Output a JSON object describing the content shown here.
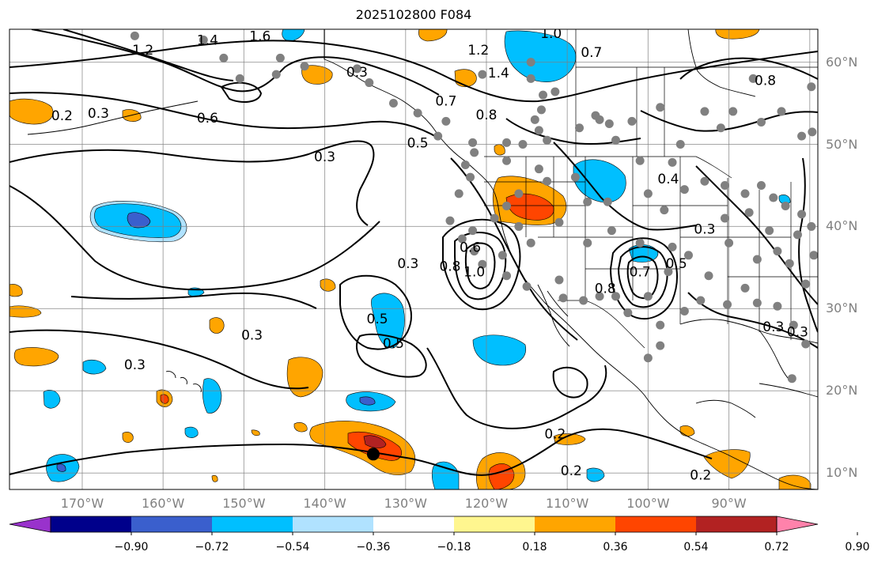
{
  "title": "2025102800 F084",
  "lat_labels": [
    {
      "value": 60,
      "text": "60°N"
    },
    {
      "value": 50,
      "text": "50°N"
    },
    {
      "value": 40,
      "text": "40°N"
    },
    {
      "value": 30,
      "text": "30°N"
    },
    {
      "value": 20,
      "text": "20°N"
    },
    {
      "value": 10,
      "text": "10°N"
    }
  ],
  "lon_labels": [
    {
      "value": -170,
      "text": "170°W"
    },
    {
      "value": -160,
      "text": "160°W"
    },
    {
      "value": -150,
      "text": "150°W"
    },
    {
      "value": -140,
      "text": "140°W"
    },
    {
      "value": -130,
      "text": "130°W"
    },
    {
      "value": -120,
      "text": "120°W"
    },
    {
      "value": -110,
      "text": "110°W"
    },
    {
      "value": -100,
      "text": "100°W"
    },
    {
      "value": -90,
      "text": "90°W"
    }
  ],
  "extent": {
    "lon_min": -179,
    "lon_max": -79,
    "lat_min": 8,
    "lat_max": 64
  },
  "colorbar": {
    "colors": [
      "#9932cc",
      "#00008b",
      "#3a5fcd",
      "#00bfff",
      "#b0e2ff",
      "#ffffff",
      "#fff68f",
      "#ffa500",
      "#ff4500",
      "#b22222",
      "#ff82ab"
    ],
    "tick_labels": [
      "−0.90",
      "−0.72",
      "−0.54",
      "−0.36",
      "−0.18",
      "0.18",
      "0.36",
      "0.54",
      "0.72",
      "0.90"
    ]
  },
  "contour_labels": [
    {
      "text": "1.2",
      "lon": -162.5,
      "lat": 61.5
    },
    {
      "text": "1.4",
      "lon": -154.5,
      "lat": 62.7
    },
    {
      "text": "1.6",
      "lon": -148,
      "lat": 63.2
    },
    {
      "text": "0.2",
      "lon": -172.5,
      "lat": 53.5
    },
    {
      "text": "0.3",
      "lon": -168,
      "lat": 53.8
    },
    {
      "text": "0.6",
      "lon": -154.5,
      "lat": 53.2
    },
    {
      "text": "0.3",
      "lon": -136,
      "lat": 58.8
    },
    {
      "text": "0.5",
      "lon": -128.5,
      "lat": 50.2
    },
    {
      "text": "0.3",
      "lon": -140,
      "lat": 48.5
    },
    {
      "text": "0.7",
      "lon": -125,
      "lat": 55.3
    },
    {
      "text": "0.8",
      "lon": -120,
      "lat": 53.6
    },
    {
      "text": "1.2",
      "lon": -121,
      "lat": 61.5
    },
    {
      "text": "1.4",
      "lon": -118.5,
      "lat": 58.7
    },
    {
      "text": "1.0",
      "lon": -112,
      "lat": 63.5
    },
    {
      "text": "0.7",
      "lon": -107,
      "lat": 61.2
    },
    {
      "text": "0.8",
      "lon": -85.5,
      "lat": 57.8
    },
    {
      "text": "0.4",
      "lon": -97.5,
      "lat": 45.8
    },
    {
      "text": "0.3",
      "lon": -93,
      "lat": 39.7
    },
    {
      "text": "0.5",
      "lon": -96.5,
      "lat": 35.5
    },
    {
      "text": "0.3",
      "lon": -129.7,
      "lat": 35.5
    },
    {
      "text": "0.6",
      "lon": -122,
      "lat": 37.5
    },
    {
      "text": "0.8",
      "lon": -124.5,
      "lat": 35.2
    },
    {
      "text": "1.0",
      "lon": -121.5,
      "lat": 34.5
    },
    {
      "text": "0.5",
      "lon": -133.5,
      "lat": 28.8
    },
    {
      "text": "0.5",
      "lon": -131.5,
      "lat": 25.8
    },
    {
      "text": "0.3",
      "lon": -149,
      "lat": 26.8
    },
    {
      "text": "0.3",
      "lon": -163.5,
      "lat": 23.2
    },
    {
      "text": "0.2",
      "lon": -111.5,
      "lat": 14.8
    },
    {
      "text": "0.2",
      "lon": -109.5,
      "lat": 10.3
    },
    {
      "text": "0.2",
      "lon": -93.5,
      "lat": 9.8
    },
    {
      "text": "0.8",
      "lon": -105.3,
      "lat": 32.5
    },
    {
      "text": "0.7",
      "lon": -101,
      "lat": 34.5
    },
    {
      "text": "0.3",
      "lon": -84.5,
      "lat": 27.8
    },
    {
      "text": "0.3",
      "lon": -81.5,
      "lat": 27.2
    }
  ],
  "station_markers": [
    [
      -163.5,
      63.2
    ],
    [
      -155,
      62.7
    ],
    [
      -152.5,
      60.5
    ],
    [
      -150.5,
      58
    ],
    [
      -146,
      58.5
    ],
    [
      -145.5,
      60.5
    ],
    [
      -142.5,
      59.5
    ],
    [
      -136,
      59.2
    ],
    [
      -134.5,
      57.5
    ],
    [
      -131.5,
      55
    ],
    [
      -128.5,
      53.8
    ],
    [
      -125,
      52.8
    ],
    [
      -126,
      51
    ],
    [
      -121.7,
      50.2
    ],
    [
      -121.5,
      49
    ],
    [
      -117.5,
      50.2
    ],
    [
      -114,
      53
    ],
    [
      -113.2,
      54.2
    ],
    [
      -113.5,
      51.7
    ],
    [
      -112.5,
      50.5
    ],
    [
      -108.5,
      52
    ],
    [
      -106.5,
      53.5
    ],
    [
      -104.8,
      52.5
    ],
    [
      -104,
      50.5
    ],
    [
      -102,
      52.8
    ],
    [
      -98.5,
      54.5
    ],
    [
      -96,
      50
    ],
    [
      -93,
      54
    ],
    [
      -91,
      52
    ],
    [
      -89.5,
      54
    ],
    [
      -87,
      58
    ],
    [
      -86,
      52.7
    ],
    [
      -83.5,
      54
    ],
    [
      -81,
      51
    ],
    [
      -79.8,
      57
    ],
    [
      -79.7,
      51.5
    ],
    [
      -120.5,
      58.5
    ],
    [
      -114.5,
      60
    ],
    [
      -113,
      56
    ],
    [
      -111.5,
      56.4
    ],
    [
      -114.5,
      58
    ],
    [
      -106,
      53
    ],
    [
      -115.5,
      50
    ],
    [
      -117.5,
      48
    ],
    [
      -122.6,
      47.5
    ],
    [
      -122,
      46
    ],
    [
      -123.4,
      44
    ],
    [
      -119,
      41
    ],
    [
      -117.5,
      42.5
    ],
    [
      -116,
      40
    ],
    [
      -114.5,
      38
    ],
    [
      -111,
      40.5
    ],
    [
      -107.5,
      38
    ],
    [
      -104.5,
      39.5
    ],
    [
      -105,
      43
    ],
    [
      -100,
      44
    ],
    [
      -98,
      42
    ],
    [
      -95.5,
      44.5
    ],
    [
      -93,
      45.5
    ],
    [
      -90.5,
      45
    ],
    [
      -88,
      44
    ],
    [
      -86,
      45
    ],
    [
      -84.5,
      43.5
    ],
    [
      -83,
      42.5
    ],
    [
      -81,
      41.5
    ],
    [
      -79.8,
      40
    ],
    [
      -81.5,
      39
    ],
    [
      -84,
      37
    ],
    [
      -86.5,
      36
    ],
    [
      -88,
      32.5
    ],
    [
      -90.2,
      30.5
    ],
    [
      -86.5,
      30.7
    ],
    [
      -84,
      30.3
    ],
    [
      -82,
      28
    ],
    [
      -80.5,
      25.7
    ],
    [
      -82.2,
      21.5
    ],
    [
      -97.5,
      34.5
    ],
    [
      -97,
      37.5
    ],
    [
      -101,
      38
    ],
    [
      -100,
      31.5
    ],
    [
      -102.5,
      29.5
    ],
    [
      -98.5,
      28
    ],
    [
      -95.5,
      29.7
    ],
    [
      -93.5,
      31
    ],
    [
      -92.5,
      34
    ],
    [
      -95,
      36.5
    ],
    [
      -90,
      38
    ],
    [
      -90.5,
      41
    ],
    [
      -87.5,
      41.7
    ],
    [
      -85,
      39.5
    ],
    [
      -82.5,
      35.5
    ],
    [
      -80.5,
      33
    ],
    [
      -79.5,
      36.5
    ],
    [
      -98.5,
      25.5
    ],
    [
      -100,
      24
    ],
    [
      -106,
      31.5
    ],
    [
      -104,
      31.5
    ],
    [
      -108,
      31
    ],
    [
      -110.5,
      31.3
    ],
    [
      -111,
      33.5
    ],
    [
      -115,
      32.7
    ],
    [
      -117.5,
      34
    ],
    [
      -118,
      36.5
    ],
    [
      -120.5,
      35.4
    ],
    [
      -121.5,
      37
    ],
    [
      -123,
      38.5
    ],
    [
      -121.7,
      39.5
    ],
    [
      -124.5,
      40.7
    ],
    [
      -116,
      44
    ],
    [
      -112.5,
      45.5
    ],
    [
      -109,
      46
    ],
    [
      -101,
      48
    ],
    [
      -97,
      47.8
    ],
    [
      -107.5,
      43
    ],
    [
      -113.5,
      47
    ]
  ],
  "tc_marker": {
    "lon": -134,
    "lat": 12.3
  }
}
